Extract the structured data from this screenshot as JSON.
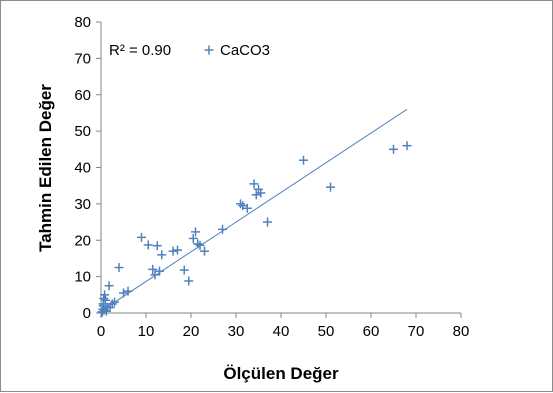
{
  "chart_data": {
    "type": "scatter",
    "xlabel": "Ölçülen Değer",
    "ylabel": "Tahmin Edilen Değer",
    "xlim": [
      0,
      80
    ],
    "ylim": [
      0,
      80
    ],
    "xticks": [
      "0",
      "10",
      "20",
      "30",
      "40",
      "50",
      "60",
      "70",
      "80"
    ],
    "yticks": [
      "0",
      "10",
      "20",
      "30",
      "40",
      "50",
      "60",
      "70",
      "80"
    ],
    "grid": false,
    "legend_position": "top-left",
    "r_squared_label": "R² = 0.90",
    "marker_color": "#4f81bd",
    "trendline": {
      "x": [
        0,
        68
      ],
      "y": [
        0.5,
        56
      ]
    },
    "series": [
      {
        "name": "CaCO3",
        "x": [
          0.2,
          0.4,
          0.5,
          0.6,
          0.8,
          1.0,
          1.2,
          1.5,
          0.3,
          0.7,
          0.5,
          1.8,
          2.0,
          2.5,
          3.0,
          4.0,
          5.0,
          6.0,
          9.0,
          10.5,
          11.5,
          12.0,
          13.0,
          12.5,
          13.5,
          16.0,
          17.0,
          18.5,
          19.5,
          20.5,
          21.0,
          21.5,
          22.0,
          23.0,
          27.0,
          31.0,
          31.5,
          32.5,
          34.0,
          34.5,
          35.0,
          35.5,
          37.0,
          45.0,
          51.0,
          65.0,
          68.0
        ],
        "y": [
          0.3,
          1.0,
          2.5,
          4.0,
          5.0,
          3.5,
          0.5,
          1.5,
          0.2,
          0.8,
          2.0,
          7.5,
          1.5,
          2.5,
          3.0,
          12.5,
          5.5,
          6.0,
          20.8,
          18.7,
          12.0,
          10.5,
          11.5,
          18.5,
          16.0,
          17.0,
          17.3,
          11.8,
          8.8,
          20.5,
          22.3,
          19.0,
          18.6,
          17.0,
          23.0,
          30.0,
          29.5,
          28.8,
          35.5,
          32.5,
          34.0,
          33.0,
          25.0,
          42.0,
          34.6,
          45.0,
          46.0
        ]
      }
    ]
  }
}
